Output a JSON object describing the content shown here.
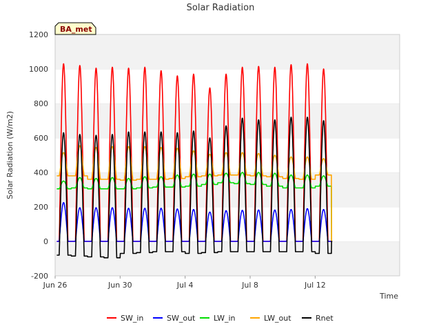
{
  "chart_data": {
    "type": "line",
    "title": "Solar Radiation",
    "xlabel": "Time",
    "ylabel": "Solar Radiation (W/m2)",
    "badge": "BA_met",
    "ylim": [
      -200,
      1200
    ],
    "yticks": [
      -200,
      0,
      200,
      400,
      600,
      800,
      1000,
      1200
    ],
    "xlim": [
      0,
      21.2
    ],
    "xticks": [
      {
        "day": 0,
        "label": "Jun 26"
      },
      {
        "day": 4,
        "label": "Jun 30"
      },
      {
        "day": 8,
        "label": "Jul 4"
      },
      {
        "day": 12,
        "label": "Jul 8"
      },
      {
        "day": 16,
        "label": "Jul 12"
      }
    ],
    "grid": "horizontal bands",
    "legend_position": "bottom",
    "days": [
      0,
      1,
      2,
      3,
      4,
      5,
      6,
      7,
      8,
      9,
      10,
      11,
      12,
      13,
      14,
      15,
      16,
      17
    ],
    "series": [
      {
        "name": "SW_in",
        "color": "#ff0000",
        "daily_peak": [
          1030,
          1020,
          1005,
          1010,
          1005,
          1010,
          990,
          960,
          970,
          890,
          970,
          1010,
          1015,
          1010,
          1025,
          1030,
          1000,
          0
        ],
        "night": 0
      },
      {
        "name": "SW_out",
        "color": "#0000ff",
        "daily_peak": [
          225,
          195,
          195,
          195,
          192,
          192,
          192,
          188,
          185,
          170,
          178,
          180,
          182,
          182,
          185,
          190,
          185,
          0
        ],
        "night": 0
      },
      {
        "name": "LW_in",
        "color": "#00dd00",
        "daily_peak": [
          350,
          370,
          365,
          370,
          365,
          375,
          375,
          385,
          390,
          390,
          395,
          400,
          400,
          395,
          385,
          385,
          380,
          0
        ],
        "night": [
          305,
          310,
          305,
          305,
          305,
          310,
          315,
          315,
          320,
          330,
          340,
          335,
          330,
          320,
          310,
          310,
          320,
          0
        ]
      },
      {
        "name": "LW_out",
        "color": "#ffa500",
        "daily_peak": [
          515,
          555,
          545,
          550,
          550,
          550,
          545,
          540,
          525,
          505,
          515,
          515,
          510,
          500,
          490,
          490,
          480,
          0
        ],
        "night": [
          380,
          380,
          360,
          360,
          355,
          360,
          360,
          365,
          375,
          380,
          385,
          385,
          380,
          375,
          365,
          360,
          385,
          0
        ]
      },
      {
        "name": "Rnet",
        "color": "#000000",
        "daily_peak": [
          630,
          620,
          615,
          620,
          635,
          635,
          635,
          630,
          640,
          600,
          670,
          715,
          705,
          705,
          720,
          720,
          700,
          0
        ],
        "night": [
          -80,
          -85,
          -90,
          -95,
          -70,
          -65,
          -60,
          -60,
          -70,
          -65,
          -60,
          -60,
          -60,
          -60,
          -60,
          -60,
          -70,
          0
        ]
      }
    ]
  }
}
